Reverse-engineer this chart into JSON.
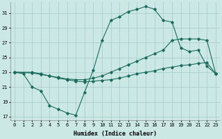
{
  "xlabel": "Humidex (Indice chaleur)",
  "background_color": "#cce8e4",
  "grid_color": "#aacfcb",
  "line_color": "#1a6b5e",
  "xlim": [
    -0.5,
    23.5
  ],
  "ylim": [
    16.5,
    32.5
  ],
  "xticks": [
    0,
    1,
    2,
    3,
    4,
    5,
    6,
    7,
    8,
    9,
    10,
    11,
    12,
    13,
    14,
    15,
    16,
    17,
    18,
    19,
    20,
    21,
    22,
    23
  ],
  "yticks": [
    17,
    19,
    21,
    23,
    25,
    27,
    29,
    31
  ],
  "line1_x": [
    0,
    1,
    2,
    3,
    4,
    5,
    6,
    7,
    8,
    9,
    10,
    11,
    12,
    13,
    14,
    15,
    16,
    17,
    18,
    19,
    20,
    21,
    22,
    23
  ],
  "line1_y": [
    23,
    22.8,
    21,
    20.5,
    18.5,
    18.0,
    17.5,
    17.2,
    20.3,
    23.3,
    27.3,
    30.0,
    30.5,
    31.2,
    31.5,
    31.9,
    31.5,
    30.0,
    29.8,
    26.3,
    25.8,
    26.0,
    23.8,
    22.8
  ],
  "line2_x": [
    0,
    2,
    3,
    4,
    5,
    6,
    7,
    8,
    9,
    10,
    11,
    12,
    13,
    14,
    15,
    16,
    17,
    18,
    19,
    20,
    21,
    22,
    23
  ],
  "line2_y": [
    23,
    23,
    22.8,
    22.5,
    22.3,
    22.1,
    22.0,
    22.0,
    22.2,
    22.5,
    23.0,
    23.5,
    24.0,
    24.5,
    25.0,
    25.5,
    26.0,
    27.3,
    27.5,
    27.5,
    27.5,
    27.3,
    22.8
  ],
  "line3_x": [
    0,
    2,
    3,
    4,
    5,
    6,
    7,
    8,
    9,
    10,
    11,
    12,
    13,
    14,
    15,
    16,
    17,
    18,
    19,
    20,
    21,
    22,
    23
  ],
  "line3_y": [
    23,
    22.9,
    22.7,
    22.5,
    22.2,
    22.0,
    21.8,
    21.7,
    21.8,
    21.9,
    22.0,
    22.2,
    22.5,
    22.8,
    23.0,
    23.2,
    23.5,
    23.7,
    23.9,
    24.0,
    24.2,
    24.3,
    22.8
  ],
  "marker_size": 1.8,
  "linewidth": 0.8,
  "fontsize_ticks": 5,
  "fontsize_label": 6
}
